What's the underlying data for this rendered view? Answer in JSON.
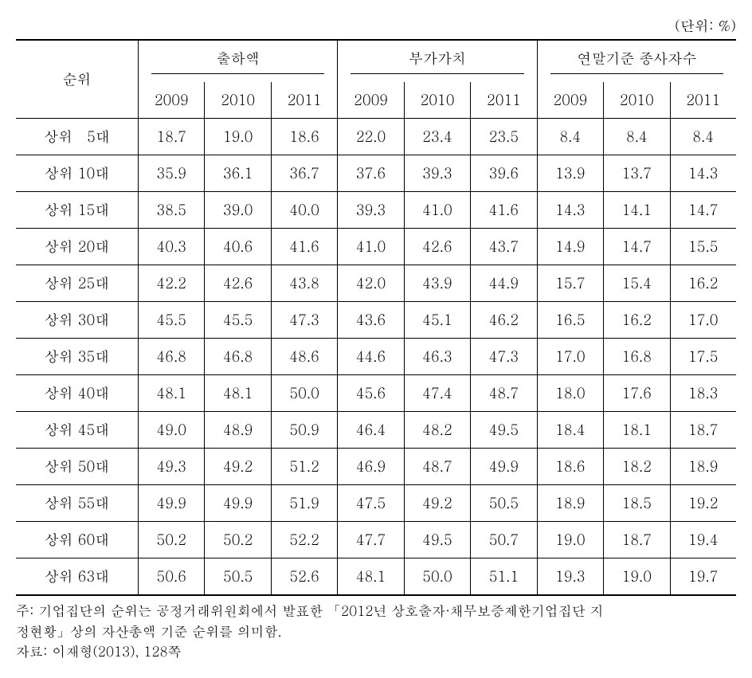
{
  "unit_label": "(단위: %)",
  "headers": {
    "rank": "순위",
    "groups": [
      "출하액",
      "부가가치",
      "연말기준 종사자수"
    ],
    "years": [
      "2009",
      "2010",
      "2011"
    ]
  },
  "rows": [
    {
      "rank": "상위   5대",
      "v": [
        "18.7",
        "19.0",
        "18.6",
        "22.0",
        "23.4",
        "23.5",
        "8.4",
        "8.4",
        "8.4"
      ]
    },
    {
      "rank": "상위 10대",
      "v": [
        "35.9",
        "36.1",
        "36.7",
        "37.6",
        "39.3",
        "39.6",
        "13.9",
        "13.7",
        "14.3"
      ]
    },
    {
      "rank": "상위 15대",
      "v": [
        "38.5",
        "39.0",
        "40.0",
        "39.3",
        "41.0",
        "41.6",
        "14.3",
        "14.1",
        "14.7"
      ]
    },
    {
      "rank": "상위 20대",
      "v": [
        "40.3",
        "40.6",
        "41.6",
        "41.0",
        "42.6",
        "43.7",
        "14.9",
        "14.7",
        "15.5"
      ]
    },
    {
      "rank": "상위 25대",
      "v": [
        "42.2",
        "42.6",
        "43.8",
        "42.0",
        "43.9",
        "44.9",
        "15.7",
        "15.4",
        "16.2"
      ]
    },
    {
      "rank": "상위 30대",
      "v": [
        "45.5",
        "45.5",
        "47.3",
        "43.6",
        "45.1",
        "46.2",
        "16.5",
        "16.2",
        "17.0"
      ]
    },
    {
      "rank": "상위 35대",
      "v": [
        "46.8",
        "46.8",
        "48.6",
        "44.6",
        "46.3",
        "47.3",
        "17.0",
        "16.8",
        "17.5"
      ]
    },
    {
      "rank": "상위 40대",
      "v": [
        "48.1",
        "48.1",
        "50.0",
        "45.6",
        "47.4",
        "48.7",
        "18.0",
        "17.6",
        "18.3"
      ]
    },
    {
      "rank": "상위 45대",
      "v": [
        "49.0",
        "48.9",
        "50.9",
        "46.4",
        "48.2",
        "49.5",
        "18.4",
        "18.1",
        "18.7"
      ]
    },
    {
      "rank": "상위 50대",
      "v": [
        "49.3",
        "49.2",
        "51.2",
        "46.9",
        "48.7",
        "49.9",
        "18.6",
        "18.2",
        "18.9"
      ]
    },
    {
      "rank": "상위 55대",
      "v": [
        "49.9",
        "49.9",
        "51.9",
        "47.5",
        "49.2",
        "50.5",
        "18.9",
        "18.5",
        "19.2"
      ]
    },
    {
      "rank": "상위 60대",
      "v": [
        "50.2",
        "50.2",
        "52.2",
        "47.7",
        "49.5",
        "50.7",
        "19.0",
        "18.7",
        "19.4"
      ]
    },
    {
      "rank": "상위 63대",
      "v": [
        "50.6",
        "50.5",
        "52.6",
        "48.1",
        "50.0",
        "51.1",
        "19.3",
        "19.0",
        "19.7"
      ]
    }
  ],
  "notes": {
    "line1": "주: 기업집단의 순위는 공정거래위원회에서 발표한 「2012년 상호출자·채무보증제한기업집단 지",
    "line2": "정현황」상의 자산총액 기준 순위를 의미함.",
    "line3": "자료: 이재형(2013), 128쪽"
  }
}
